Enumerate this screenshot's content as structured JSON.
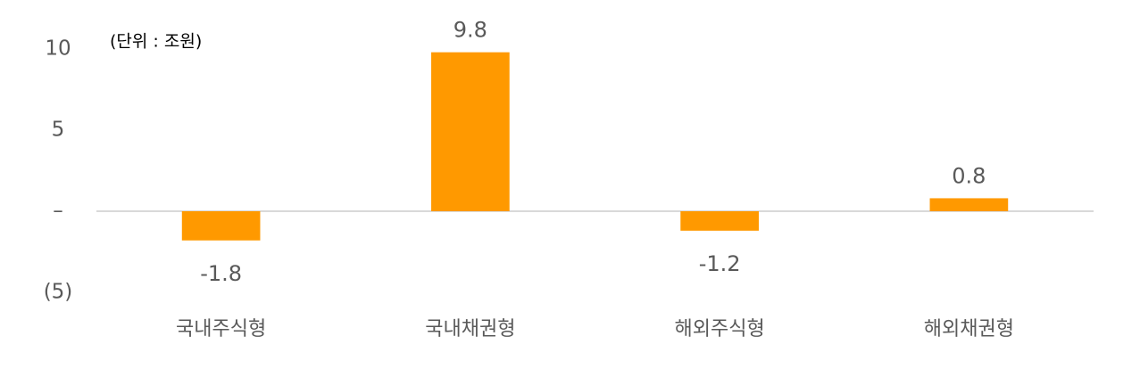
{
  "chart_data": {
    "type": "bar",
    "subtitle": "(단위 : 조원)",
    "categories": [
      "국내주식형",
      "국내채권형",
      "해외주식형",
      "해외채권형"
    ],
    "values": [
      -1.8,
      9.8,
      -1.2,
      0.8
    ],
    "color": "#ff9900",
    "ylim": [
      -5,
      10
    ],
    "yticks": [
      10,
      5,
      {
        "value": 0,
        "label": "–"
      },
      {
        "value": -5,
        "label": "(5)"
      }
    ],
    "grid": false
  }
}
